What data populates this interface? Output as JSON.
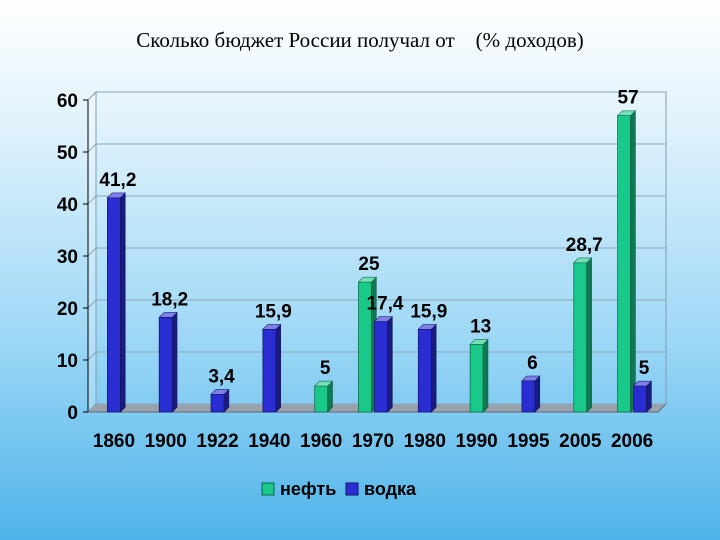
{
  "slide": {
    "title": "Сколько бюджет России получал от    (% доходов)"
  },
  "chart_data": {
    "type": "bar",
    "title": "Сколько бюджет России получал от    (% доходов)",
    "categories": [
      "1860",
      "1900",
      "1922",
      "1940",
      "1960",
      "1970",
      "1980",
      "1990",
      "1995",
      "2005",
      "2006"
    ],
    "series": [
      {
        "name": "нефть",
        "color": "#19c98a",
        "values": [
          null,
          null,
          null,
          null,
          5,
          25,
          null,
          13,
          null,
          28.7,
          57
        ],
        "labels": [
          null,
          null,
          null,
          null,
          "5",
          "25",
          null,
          "13",
          null,
          "28,7",
          "57"
        ]
      },
      {
        "name": "водка",
        "color": "#2a2ed2",
        "values": [
          41.2,
          18.2,
          3.4,
          15.9,
          null,
          17.4,
          15.9,
          null,
          6,
          null,
          5
        ],
        "labels": [
          "41,2",
          "18,2",
          "3,4",
          "15,9",
          null,
          "17,4",
          "15,9",
          null,
          "6",
          null,
          "5"
        ]
      }
    ],
    "ylim": [
      0,
      60
    ],
    "yticks": [
      "0",
      "10",
      "20",
      "30",
      "40",
      "50",
      "60"
    ],
    "grid": true,
    "legend": "bottom"
  }
}
